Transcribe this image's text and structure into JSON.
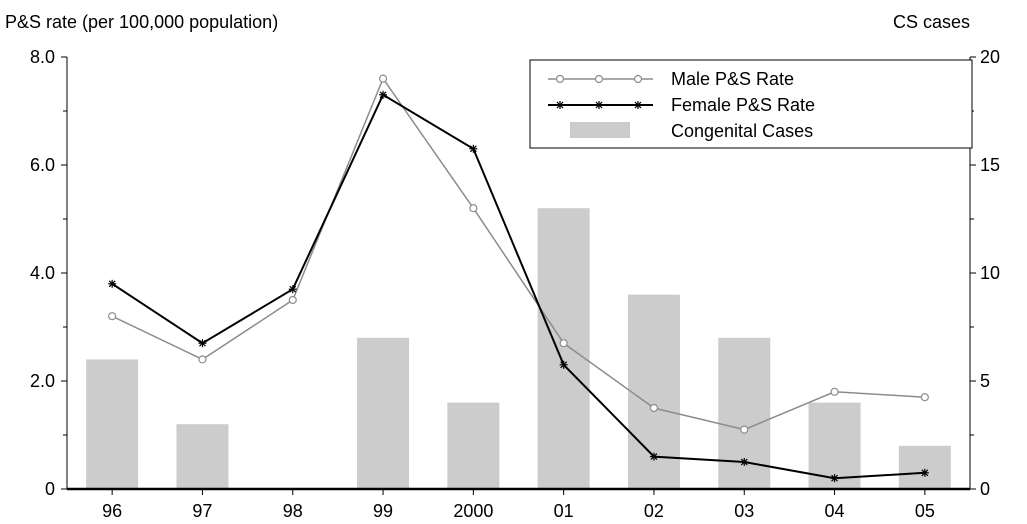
{
  "chart_data": {
    "type": "bar",
    "categories": [
      "96",
      "97",
      "98",
      "99",
      "2000",
      "01",
      "02",
      "03",
      "04",
      "05"
    ],
    "ylabel_left": "P&S rate (per 100,000 population)",
    "ylabel_right": "CS cases",
    "ylim_left": [
      0,
      8
    ],
    "ylim_right": [
      0,
      20
    ],
    "yticks_left": [
      "0",
      "2.0",
      "4.0",
      "6.0",
      "8.0"
    ],
    "yticks_right": [
      "0",
      "5",
      "10",
      "15",
      "20"
    ],
    "grid": false,
    "legend_position": "top-right",
    "series": [
      {
        "name": "Male P&S Rate",
        "type": "line",
        "axis": "left",
        "marker": "circle",
        "color": "#8c8c8c",
        "values": [
          3.2,
          2.4,
          3.5,
          7.6,
          5.2,
          2.7,
          1.5,
          1.1,
          1.8,
          1.7
        ]
      },
      {
        "name": "Female P&S Rate",
        "type": "line",
        "axis": "left",
        "marker": "asterisk",
        "color": "#000000",
        "values": [
          3.8,
          2.7,
          3.7,
          7.3,
          6.3,
          2.3,
          0.6,
          0.5,
          0.2,
          0.3
        ]
      },
      {
        "name": "Congenital Cases",
        "type": "bar",
        "axis": "right",
        "color": "#cccccc",
        "values": [
          6,
          3,
          0,
          7,
          4,
          13,
          9,
          7,
          4,
          2
        ]
      }
    ]
  }
}
